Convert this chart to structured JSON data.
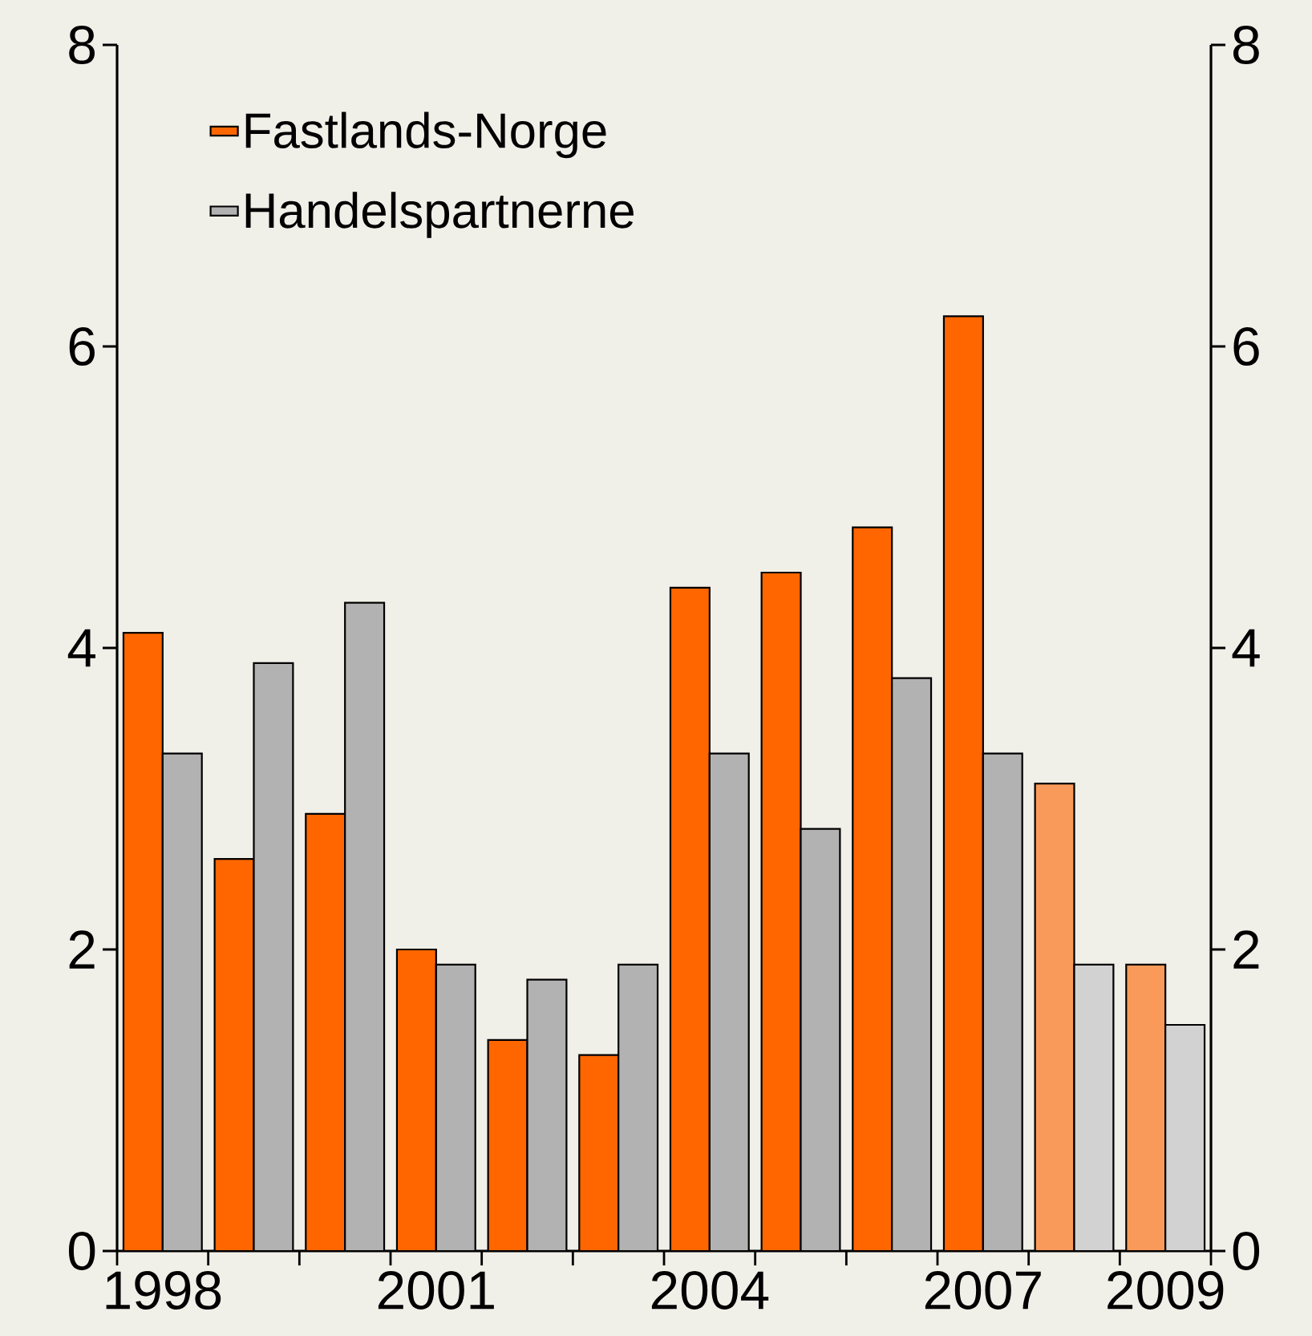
{
  "chart_data": {
    "type": "bar",
    "categories": [
      "1998",
      null,
      null,
      "2001",
      null,
      null,
      "2004",
      null,
      null,
      "2007",
      null,
      "2009"
    ],
    "series": [
      {
        "name": "Fastlands-Norge",
        "color": "#ff6600",
        "colors": [
          "#ff6600",
          "#ff6600",
          "#ff6600",
          "#ff6600",
          "#ff6600",
          "#ff6600",
          "#ff6600",
          "#ff6600",
          "#ff6600",
          "#ff6600",
          "#fa9a5a",
          "#fa9a5a"
        ],
        "values": [
          4.1,
          2.6,
          2.9,
          2.0,
          1.4,
          1.3,
          4.4,
          4.5,
          4.8,
          6.2,
          3.1,
          1.9
        ]
      },
      {
        "name": "Handelspartnerne",
        "color": "#b2b2b2",
        "colors": [
          "#b2b2b2",
          "#b2b2b2",
          "#b2b2b2",
          "#b2b2b2",
          "#b2b2b2",
          "#b2b2b2",
          "#b2b2b2",
          "#b2b2b2",
          "#b2b2b2",
          "#b2b2b2",
          "#d2d2d2",
          "#d2d2d2"
        ],
        "values": [
          3.3,
          3.9,
          4.3,
          1.9,
          1.8,
          1.9,
          3.3,
          2.8,
          3.8,
          3.3,
          1.9,
          1.5
        ]
      }
    ],
    "ylim": [
      0,
      8
    ],
    "yticks": [
      0,
      2,
      4,
      6,
      8
    ],
    "y2lim": [
      0,
      8
    ],
    "y2ticks": [
      0,
      2,
      4,
      6,
      8
    ],
    "legend": "top left",
    "grid": false
  }
}
